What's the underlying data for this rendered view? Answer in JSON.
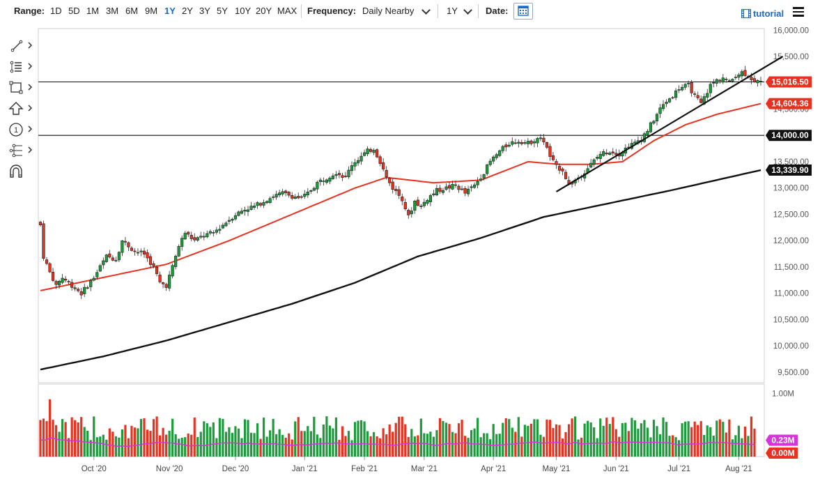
{
  "toolbar": {
    "range_label": "Range:",
    "ranges": [
      "1D",
      "5D",
      "1M",
      "3M",
      "6M",
      "9M",
      "1Y",
      "2Y",
      "3Y",
      "5Y",
      "10Y",
      "20Y",
      "MAX"
    ],
    "active_range": "1Y",
    "frequency_label": "Frequency:",
    "frequency_value": "Daily Nearby",
    "period_value": "1Y",
    "date_label": "Date:",
    "tutorial_label": "tutorial"
  },
  "icons": {
    "tools": [
      "line-draw-icon",
      "fibonacci-icon",
      "rectangle-icon",
      "arrow-up-icon",
      "annotation-1-icon",
      "pitchfork-icon",
      "magnet-icon"
    ],
    "calendar": "calendar-icon",
    "menu": "hamburger-menu-icon",
    "tutorial": "film-icon"
  },
  "chart_data": {
    "type": "candlestick",
    "price_axis": {
      "ticks": [
        16000,
        15500,
        15000,
        14500,
        14000,
        13500,
        13000,
        12500,
        12000,
        11500,
        11000,
        10500,
        10000,
        9500
      ],
      "tick_labels": [
        "16,000.00",
        "15,500.00",
        "15,000.00",
        "14,500.00",
        "14,000.00",
        "13,500.00",
        "13,000.00",
        "12,500.00",
        "12,000.00",
        "11,500.00",
        "11,000.00",
        "10,500.00",
        "10,000.00",
        "9,500.00"
      ],
      "range": [
        9300,
        16030
      ]
    },
    "x_axis": {
      "tick_labels": [
        "Oct '20",
        "Nov '20",
        "Dec '20",
        "Jan '21",
        "Feb '21",
        "Mar '21",
        "Apr '21",
        "May '21",
        "Jun '21",
        "Jul '21",
        "Aug '21"
      ],
      "tick_index": [
        17,
        41,
        62,
        84,
        103,
        122,
        144,
        164,
        183,
        203,
        222
      ]
    },
    "close_anchors": [
      [
        0,
        12300
      ],
      [
        1,
        11700
      ],
      [
        3,
        11400
      ],
      [
        5,
        11150
      ],
      [
        7,
        11300
      ],
      [
        9,
        11200
      ],
      [
        11,
        11100
      ],
      [
        13,
        11000
      ],
      [
        15,
        11150
      ],
      [
        17,
        11300
      ],
      [
        19,
        11500
      ],
      [
        21,
        11700
      ],
      [
        24,
        11650
      ],
      [
        26,
        12000
      ],
      [
        28,
        11900
      ],
      [
        30,
        11800
      ],
      [
        33,
        11750
      ],
      [
        36,
        11500
      ],
      [
        38,
        11200
      ],
      [
        40,
        11150
      ],
      [
        42,
        11500
      ],
      [
        44,
        11900
      ],
      [
        46,
        12150
      ],
      [
        49,
        12000
      ],
      [
        52,
        12100
      ],
      [
        55,
        12150
      ],
      [
        58,
        12300
      ],
      [
        62,
        12500
      ],
      [
        65,
        12600
      ],
      [
        68,
        12650
      ],
      [
        71,
        12750
      ],
      [
        74,
        12850
      ],
      [
        77,
        12900
      ],
      [
        80,
        12850
      ],
      [
        83,
        12800
      ],
      [
        85,
        12900
      ],
      [
        88,
        13100
      ],
      [
        91,
        13200
      ],
      [
        94,
        13300
      ],
      [
        97,
        13200
      ],
      [
        99,
        13450
      ],
      [
        101,
        13550
      ],
      [
        104,
        13700
      ],
      [
        106,
        13750
      ],
      [
        108,
        13500
      ],
      [
        110,
        13200
      ],
      [
        112,
        13000
      ],
      [
        115,
        12800
      ],
      [
        117,
        12450
      ],
      [
        119,
        12750
      ],
      [
        121,
        12650
      ],
      [
        123,
        12800
      ],
      [
        126,
        12950
      ],
      [
        129,
        13000
      ],
      [
        132,
        13050
      ],
      [
        135,
        12900
      ],
      [
        138,
        13050
      ],
      [
        141,
        13300
      ],
      [
        143,
        13500
      ],
      [
        146,
        13700
      ],
      [
        149,
        13850
      ],
      [
        152,
        13900
      ],
      [
        155,
        13850
      ],
      [
        158,
        13950
      ],
      [
        160,
        13900
      ],
      [
        162,
        13600
      ],
      [
        164,
        13400
      ],
      [
        166,
        13350
      ],
      [
        168,
        13050
      ],
      [
        170,
        13150
      ],
      [
        172,
        13250
      ],
      [
        175,
        13450
      ],
      [
        178,
        13650
      ],
      [
        181,
        13700
      ],
      [
        184,
        13650
      ],
      [
        187,
        13800
      ],
      [
        189,
        13850
      ],
      [
        191,
        13950
      ],
      [
        193,
        14100
      ],
      [
        195,
        14300
      ],
      [
        197,
        14500
      ],
      [
        199,
        14650
      ],
      [
        201,
        14750
      ],
      [
        203,
        14900
      ],
      [
        206,
        14950
      ],
      [
        208,
        14750
      ],
      [
        210,
        14600
      ],
      [
        213,
        14950
      ],
      [
        215,
        15050
      ],
      [
        217,
        15100
      ],
      [
        219,
        15000
      ],
      [
        221,
        15150
      ],
      [
        223,
        15200
      ],
      [
        225,
        15150
      ],
      [
        227,
        15016.5
      ]
    ],
    "horizontal_lines": [
      {
        "price": 15016.5,
        "label": "15,016.50",
        "color": "#111111"
      },
      {
        "price": 14000.0,
        "label": "14,000.00",
        "color": "#111111"
      }
    ],
    "moving_averages": [
      {
        "last_value": 14604.36,
        "label": "14,604.36",
        "color": "#e8311f"
      },
      {
        "last_value": 13339.9,
        "label": "13,339.90",
        "color": "#111111"
      }
    ],
    "sma50_anchors": [
      [
        0,
        11050
      ],
      [
        20,
        11300
      ],
      [
        40,
        11550
      ],
      [
        60,
        12000
      ],
      [
        80,
        12500
      ],
      [
        100,
        13000
      ],
      [
        110,
        13200
      ],
      [
        125,
        13100
      ],
      [
        140,
        13150
      ],
      [
        155,
        13500
      ],
      [
        165,
        13450
      ],
      [
        175,
        13450
      ],
      [
        185,
        13500
      ],
      [
        195,
        13900
      ],
      [
        205,
        14200
      ],
      [
        215,
        14400
      ],
      [
        229,
        14604.36
      ]
    ],
    "sma200_anchors": [
      [
        0,
        9550
      ],
      [
        20,
        9800
      ],
      [
        40,
        10100
      ],
      [
        60,
        10450
      ],
      [
        80,
        10800
      ],
      [
        100,
        11200
      ],
      [
        120,
        11700
      ],
      [
        140,
        12050
      ],
      [
        160,
        12450
      ],
      [
        180,
        12700
      ],
      [
        200,
        12950
      ],
      [
        229,
        13339.9
      ]
    ],
    "trendline": {
      "start": [
        164,
        12930
      ],
      "end": [
        236,
        15500
      ]
    },
    "volume_axis": {
      "tick_labels": [
        "1.00M"
      ],
      "range": [
        0,
        1150000
      ],
      "tag_values": [
        {
          "label": "0.23M",
          "color": "#d534d8"
        },
        {
          "label": "0.00M",
          "color": "#e8311f"
        }
      ]
    },
    "colors": {
      "up": "#1e9a3c",
      "down": "#e8311f",
      "volume_ma": "#d534d8",
      "grid": "#e6e6e6"
    },
    "grid": false
  }
}
